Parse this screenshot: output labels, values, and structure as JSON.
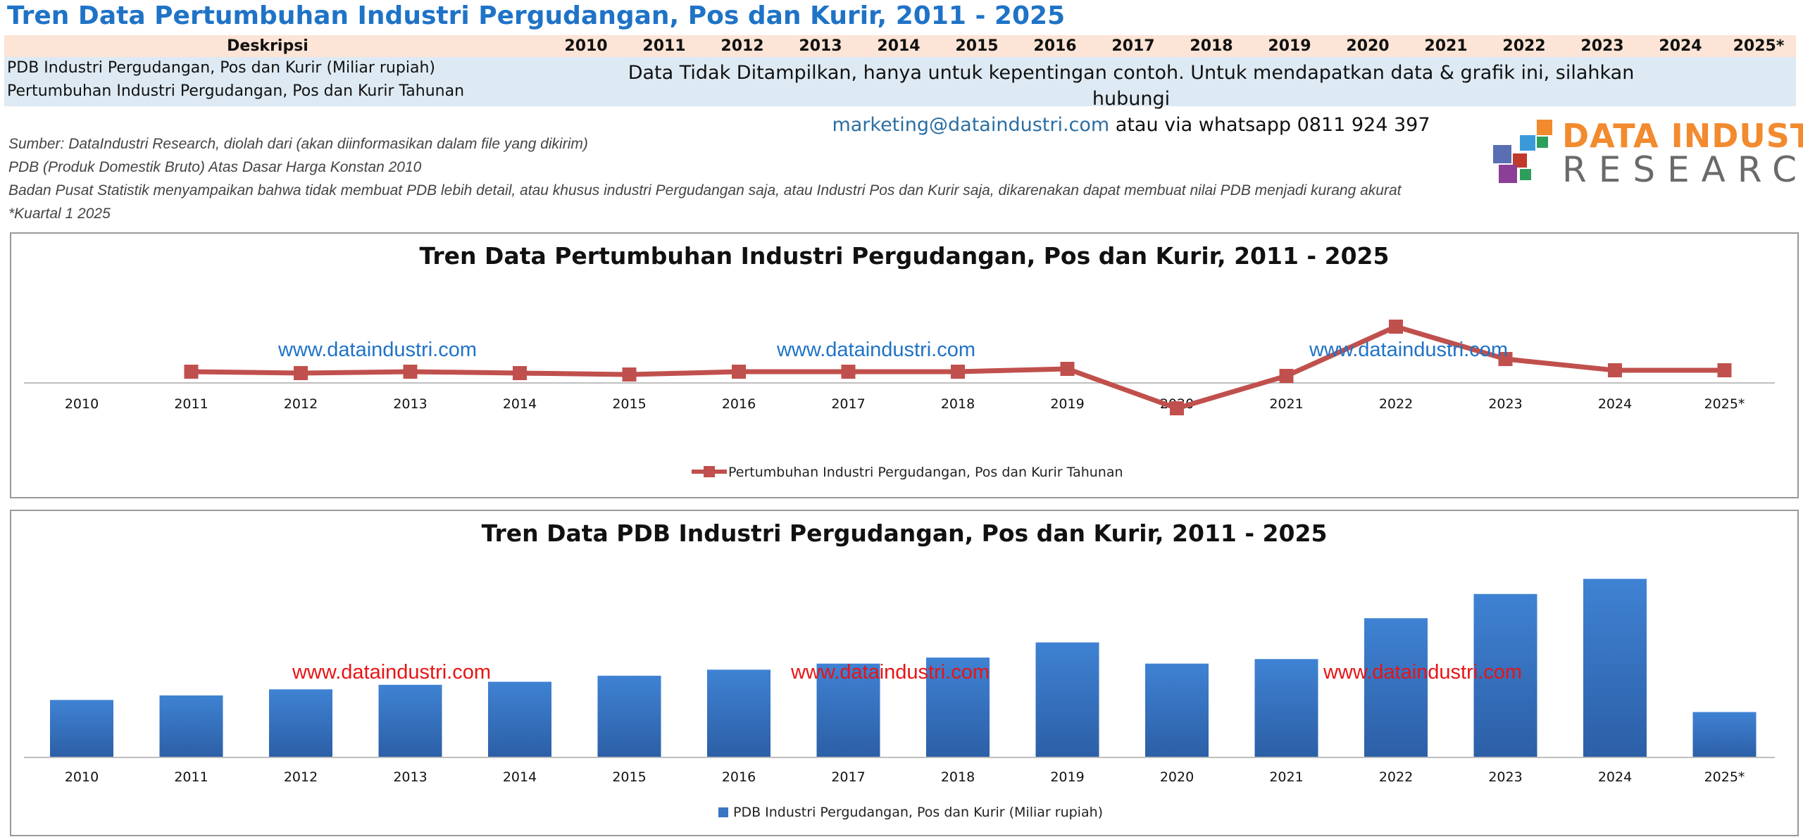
{
  "page_title": "Tren Data Pertumbuhan Industri Pergudangan, Pos dan Kurir, 2011 - 2025",
  "table": {
    "header_label": "Deskripsi",
    "years": [
      "2010",
      "2011",
      "2012",
      "2013",
      "2014",
      "2015",
      "2016",
      "2017",
      "2018",
      "2019",
      "2020",
      "2021",
      "2022",
      "2023",
      "2024",
      "2025*"
    ],
    "rows": [
      "PDB Industri Pergudangan, Pos dan Kurir (Miliar rupiah)",
      "Pertumbuhan Industri Pergudangan, Pos dan Kurir Tahunan"
    ],
    "notice_line1": "Data Tidak Ditampilkan, hanya untuk kepentingan contoh. Untuk mendapatkan data & grafik  ini, silahkan hubungi",
    "notice_email": "marketing@dataindustri.com",
    "notice_line2_rest": " atau via whatsapp 0811 924 397"
  },
  "notes": [
    "Sumber: DataIndustri Research, diolah dari (akan diinformasikan dalam file yang dikirim)",
    "PDB (Produk Domestik Bruto) Atas Dasar Harga Konstan 2010",
    "Badan Pusat Statistik menyampaikan bahwa tidak membuat PDB lebih detail, atau khusus industri Pergudangan saja, atau Industri Pos dan Kurir saja, dikarenakan dapat membuat nilai PDB menjadi kurang akurat",
    "*Kuartal 1 2025"
  ],
  "logo": {
    "line1": "DATA INDUSTRI",
    "line2": "RESEARCH",
    "colors": [
      "#f28a2e",
      "#3a9ad9",
      "#2e9e5b",
      "#8b3f97",
      "#c0392b",
      "#5a6fb3"
    ]
  },
  "watermark": "www.dataindustri.com",
  "chart_data": [
    {
      "type": "line",
      "title": "Tren Data Pertumbuhan Industri Pergudangan, Pos dan Kurir, 2011 - 2025",
      "categories": [
        "2010",
        "2011",
        "2012",
        "2013",
        "2014",
        "2015",
        "2016",
        "2017",
        "2018",
        "2019",
        "2020",
        "2021",
        "2022",
        "2023",
        "2024",
        "2025*"
      ],
      "series": [
        {
          "name": "Pertumbuhan Industri Pergudangan, Pos dan Kurir Tahunan",
          "color": "#c0504d",
          "values": [
            null,
            8,
            7,
            8,
            7,
            6,
            8,
            8,
            8,
            10,
            -18,
            5,
            40,
            17,
            9,
            9
          ]
        }
      ],
      "legend_position": "bottom",
      "grid": false,
      "watermark_color": "#1f73c7"
    },
    {
      "type": "bar",
      "title": "Tren Data PDB Industri Pergudangan, Pos dan Kurir, 2011 - 2025",
      "categories": [
        "2010",
        "2011",
        "2012",
        "2013",
        "2014",
        "2015",
        "2016",
        "2017",
        "2018",
        "2019",
        "2020",
        "2021",
        "2022",
        "2023",
        "2024",
        "2025*"
      ],
      "series": [
        {
          "name": "PDB Industri Pergudangan, Pos dan Kurir (Miliar rupiah)",
          "color": "#3a75c4",
          "values": [
            38,
            41,
            45,
            48,
            50,
            54,
            58,
            62,
            66,
            76,
            62,
            65,
            92,
            108,
            118,
            30
          ]
        }
      ],
      "legend_position": "bottom",
      "grid": false,
      "watermark_color": "#e81414"
    }
  ]
}
